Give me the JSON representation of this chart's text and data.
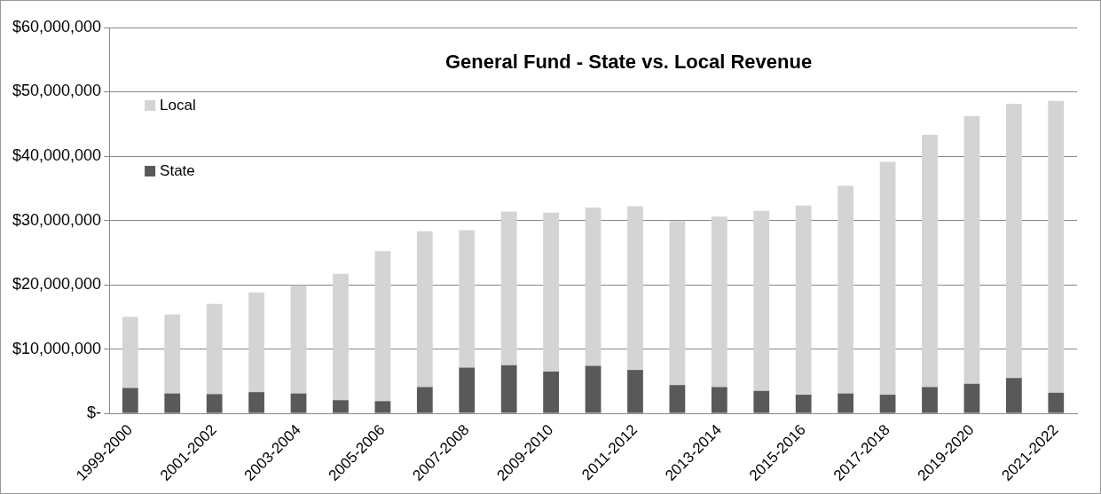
{
  "chart_data": {
    "type": "bar",
    "title": "General Fund - State vs. Local Revenue",
    "stacked": true,
    "categories": [
      "1999-2000",
      null,
      "2001-2002",
      null,
      "2003-2004",
      null,
      "2005-2006",
      null,
      "2007-2008",
      null,
      "2009-2010",
      null,
      "2011-2012",
      null,
      "2013-2014",
      null,
      "2015-2016",
      null,
      "2017-2018",
      null,
      "2019-2020",
      null,
      "2021-2022"
    ],
    "series": [
      {
        "name": "State",
        "color": "#595959",
        "values": [
          3950000,
          3100000,
          3000000,
          3300000,
          3100000,
          2050000,
          1900000,
          4100000,
          7100000,
          7500000,
          6500000,
          7400000,
          6750000,
          4400000,
          4100000,
          3500000,
          2900000,
          3100000,
          2900000,
          4100000,
          4600000,
          5500000,
          3200000
        ]
      },
      {
        "name": "Local",
        "color": "#d4d4d4",
        "values": [
          11050000,
          12300000,
          14000000,
          15500000,
          16800000,
          19650000,
          23300000,
          24200000,
          21400000,
          23900000,
          24700000,
          24600000,
          25450000,
          25500000,
          26500000,
          28000000,
          29400000,
          32300000,
          36200000,
          39200000,
          41600000,
          42600000,
          45400000
        ]
      }
    ],
    "ylim": [
      0,
      60000000
    ],
    "yticks": [
      {
        "value": 0,
        "label": "$-"
      },
      {
        "value": 10000000,
        "label": "$10,000,000"
      },
      {
        "value": 20000000,
        "label": "$20,000,000"
      },
      {
        "value": 30000000,
        "label": "$30,000,000"
      },
      {
        "value": 40000000,
        "label": "$40,000,000"
      },
      {
        "value": 50000000,
        "label": "$50,000,000"
      },
      {
        "value": 60000000,
        "label": "$60,000,000"
      }
    ],
    "grid": "y",
    "legend": "top left"
  }
}
